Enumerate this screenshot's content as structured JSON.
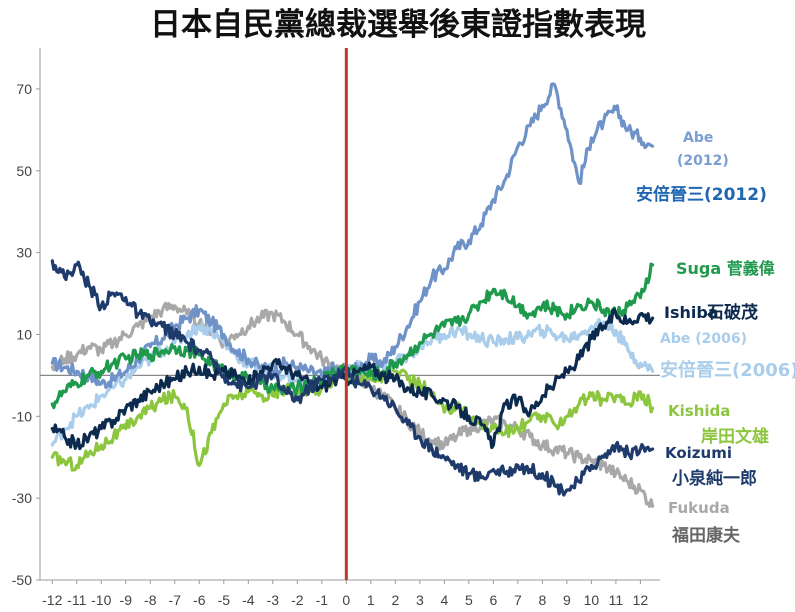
{
  "chart_data": {
    "type": "line",
    "title": "日本自民黨總裁選舉後東證指數表現",
    "xlabel": "",
    "ylabel": "",
    "xlim": [
      -12.5,
      12.8
    ],
    "ylim": [
      -50,
      80
    ],
    "x_ticks": [
      "-12",
      "-11",
      "-10",
      "-9",
      "-8",
      "-7",
      "-6",
      "-5",
      "-4",
      "-3",
      "-2",
      "-1",
      "0",
      "1",
      "2",
      "3",
      "4",
      "5",
      "6",
      "7",
      "8",
      "9",
      "10",
      "11",
      "12"
    ],
    "y_ticks": [
      "70",
      "50",
      "30",
      "10",
      "-10",
      "-30",
      "-50"
    ],
    "y_tick_values": [
      70,
      50,
      30,
      10,
      -10,
      -30,
      -50
    ],
    "baseline": 0,
    "event_line_x": 0,
    "event_line_color": "#c0392b",
    "grid": false,
    "legend": "labels at line ends (right)",
    "series": [
      {
        "name": "Abe (2012) / 安倍晉三(2012)",
        "color": "#6f93c9",
        "labels": [
          "Abe",
          "(2012)",
          "安倍晉三(2012)"
        ],
        "x": [
          -12,
          -11.5,
          -11,
          -10.5,
          -10,
          -9.5,
          -9,
          -8.5,
          -8,
          -7.5,
          -7,
          -6.5,
          -6,
          -5.5,
          -5,
          -4.5,
          -4,
          -3.5,
          -3,
          -2.5,
          -2,
          -1.5,
          -1,
          -0.5,
          0,
          0.5,
          1,
          1.5,
          2,
          2.5,
          3,
          3.5,
          4,
          4.5,
          5,
          5.5,
          6,
          6.5,
          7,
          7.5,
          8,
          8.5,
          9,
          9.5,
          10,
          10.5,
          11,
          11.5,
          12,
          12.5
        ],
        "values": [
          3,
          2,
          1,
          0,
          -2,
          -1,
          1,
          4,
          7,
          9,
          12,
          14,
          16,
          13,
          10,
          6,
          4,
          2,
          1,
          3,
          2,
          1,
          0,
          2,
          0,
          2,
          4,
          3,
          7,
          12,
          18,
          24,
          26,
          31,
          33,
          37,
          43,
          48,
          56,
          61,
          66,
          71,
          60,
          47,
          58,
          62,
          65,
          60,
          58,
          56
        ]
      },
      {
        "name": "Suga 菅義偉",
        "color": "#1f9a4d",
        "labels": [
          "Suga 菅義偉"
        ],
        "x": [
          -12,
          -11.5,
          -11,
          -10.5,
          -10,
          -9.5,
          -9,
          -8.5,
          -8,
          -7.5,
          -7,
          -6.5,
          -6,
          -5.5,
          -5,
          -4.5,
          -4,
          -3.5,
          -3,
          -2.5,
          -2,
          -1.5,
          -1,
          -0.5,
          0,
          0.5,
          1,
          1.5,
          2,
          2.5,
          3,
          3.5,
          4,
          4.5,
          5,
          5.5,
          6,
          6.5,
          7,
          7.5,
          8,
          8.5,
          9,
          9.5,
          10,
          10.5,
          11,
          11.5,
          12,
          12.5
        ],
        "values": [
          -7,
          -4,
          -2,
          0,
          1,
          3,
          4,
          5,
          5,
          6,
          7,
          6,
          5,
          3,
          1,
          0,
          -1,
          -2,
          -3,
          -4,
          -3,
          -2,
          -1,
          1,
          2,
          1,
          0,
          1,
          3,
          5,
          8,
          10,
          12,
          13,
          15,
          18,
          21,
          20,
          17,
          15,
          17,
          16,
          15,
          17,
          18,
          16,
          15,
          17,
          19,
          27
        ]
      },
      {
        "name": "Ishiba 石破茂",
        "color": "#0c2a4e",
        "labels": [
          "Ishiba",
          "石破茂"
        ],
        "x": [
          -12,
          -11.5,
          -11,
          -10.5,
          -10,
          -9.5,
          -9,
          -8.5,
          -8,
          -7.5,
          -7,
          -6.5,
          -6,
          -5.5,
          -5,
          -4.5,
          -4,
          -3.5,
          -3,
          -2.5,
          -2,
          -1.5,
          -1,
          -0.5,
          0,
          0.5,
          1,
          1.5,
          2,
          2.5,
          3,
          3.5,
          4,
          4.5,
          5,
          5.5,
          6,
          6.5,
          7,
          7.5,
          8,
          8.5,
          9,
          9.5,
          10,
          10.5,
          11,
          11.5,
          12,
          12.5
        ],
        "values": [
          -13,
          -15,
          -17,
          -15,
          -13,
          -11,
          -8,
          -6,
          -4,
          -2,
          -1,
          1,
          2,
          0,
          1,
          0,
          -2,
          1,
          3,
          2,
          0,
          -2,
          -3,
          -1,
          -1,
          1,
          2,
          0,
          -1,
          -3,
          -4,
          -5,
          -6,
          -8,
          -10,
          -12,
          -17,
          -7,
          -6,
          -9,
          -5,
          -2,
          1,
          4,
          9,
          12,
          15,
          13,
          15,
          14
        ]
      },
      {
        "name": "Abe (2006) / 安倍晉三(2006)",
        "color": "#a9cdea",
        "labels": [
          "Abe (2006)",
          "安倍晉三(2006)"
        ],
        "x": [
          -12,
          -11.5,
          -11,
          -10.5,
          -10,
          -9.5,
          -9,
          -8.5,
          -8,
          -7.5,
          -7,
          -6.5,
          -6,
          -5.5,
          -5,
          -4.5,
          -4,
          -3.5,
          -3,
          -2.5,
          -2,
          -1.5,
          -1,
          -0.5,
          0,
          0.5,
          1,
          1.5,
          2,
          2.5,
          3,
          3.5,
          4,
          4.5,
          5,
          5.5,
          6,
          6.5,
          7,
          7.5,
          8,
          8.5,
          9,
          9.5,
          10,
          10.5,
          11,
          11.5,
          12,
          12.5
        ],
        "values": [
          -17,
          -13,
          -10,
          -8,
          -5,
          -3,
          -1,
          2,
          4,
          6,
          8,
          10,
          12,
          11,
          8,
          5,
          3,
          2,
          1,
          0,
          -1,
          -2,
          -2,
          0,
          1,
          2,
          1,
          2,
          3,
          5,
          7,
          9,
          10,
          11,
          10,
          9,
          8,
          9,
          9,
          10,
          11,
          10,
          9,
          10,
          12,
          13,
          11,
          6,
          3,
          1
        ]
      },
      {
        "name": "Kishida 岸田文雄",
        "color": "#8cc63e",
        "labels": [
          "Kishida",
          "岸田文雄"
        ],
        "x": [
          -12,
          -11.5,
          -11,
          -10.5,
          -10,
          -9.5,
          -9,
          -8.5,
          -8,
          -7.5,
          -7,
          -6.5,
          -6,
          -5.5,
          -5,
          -4.5,
          -4,
          -3.5,
          -3,
          -2.5,
          -2,
          -1.5,
          -1,
          -0.5,
          0,
          0.5,
          1,
          1.5,
          2,
          2.5,
          3,
          3.5,
          4,
          4.5,
          5,
          5.5,
          6,
          6.5,
          7,
          7.5,
          8,
          8.5,
          9,
          9.5,
          10,
          10.5,
          11,
          11.5,
          12,
          12.5
        ],
        "values": [
          -20,
          -21,
          -22,
          -19,
          -17,
          -15,
          -13,
          -10,
          -8,
          -6,
          -5,
          -8,
          -22,
          -14,
          -7,
          -5,
          -4,
          -5,
          -5,
          -3,
          -4,
          -4,
          -3,
          -1,
          0,
          -1,
          -1,
          0,
          1,
          -1,
          -2,
          -5,
          -9,
          -7,
          -10,
          -12,
          -13,
          -14,
          -13,
          -11,
          -10,
          -12,
          -10,
          -7,
          -5,
          -6,
          -5,
          -7,
          -4,
          -8
        ]
      },
      {
        "name": "Koizumi 小泉純一郎",
        "color": "#1e3b6c",
        "labels": [
          "Koizumi",
          "小泉純一郎"
        ],
        "x": [
          -12,
          -11.5,
          -11,
          -10.5,
          -10,
          -9.5,
          -9,
          -8.5,
          -8,
          -7.5,
          -7,
          -6.5,
          -6,
          -5.5,
          -5,
          -4.5,
          -4,
          -3.5,
          -3,
          -2.5,
          -2,
          -1.5,
          -1,
          -0.5,
          0,
          0.5,
          1,
          1.5,
          2,
          2.5,
          3,
          3.5,
          4,
          4.5,
          5,
          5.5,
          6,
          6.5,
          7,
          7.5,
          8,
          8.5,
          9,
          9.5,
          10,
          10.5,
          11,
          11.5,
          12,
          12.5
        ],
        "values": [
          28,
          24,
          27,
          22,
          17,
          20,
          19,
          15,
          13,
          12,
          10,
          8,
          6,
          4,
          0,
          -2,
          -3,
          -1,
          0,
          -4,
          -6,
          -3,
          -1,
          0,
          1,
          -2,
          -3,
          -5,
          -8,
          -12,
          -15,
          -18,
          -20,
          -22,
          -24,
          -25,
          -23,
          -24,
          -22,
          -23,
          -24,
          -27,
          -28,
          -26,
          -22,
          -20,
          -17,
          -19,
          -18,
          -18
        ]
      },
      {
        "name": "Fukuda 福田康夫",
        "color": "#a8a8a8",
        "labels": [
          "Fukuda",
          "福田康夫"
        ],
        "x": [
          -12,
          -11.5,
          -11,
          -10.5,
          -10,
          -9.5,
          -9,
          -8.5,
          -8,
          -7.5,
          -7,
          -6.5,
          -6,
          -5.5,
          -5,
          -4.5,
          -4,
          -3.5,
          -3,
          -2.5,
          -2,
          -1.5,
          -1,
          -0.5,
          0,
          0.5,
          1,
          1.5,
          2,
          2.5,
          3,
          3.5,
          4,
          4.5,
          5,
          5.5,
          6,
          6.5,
          7,
          7.5,
          8,
          8.5,
          9,
          9.5,
          10,
          10.5,
          11,
          11.5,
          12,
          12.5
        ],
        "values": [
          2,
          4,
          5,
          7,
          6,
          8,
          10,
          12,
          14,
          16,
          17,
          15,
          13,
          11,
          8,
          10,
          12,
          14,
          15,
          13,
          10,
          7,
          4,
          2,
          1,
          -1,
          -3,
          -5,
          -8,
          -11,
          -14,
          -16,
          -17,
          -15,
          -13,
          -12,
          -11,
          -12,
          -13,
          -15,
          -17,
          -18,
          -19,
          -20,
          -21,
          -22,
          -24,
          -26,
          -28,
          -32
        ]
      }
    ]
  }
}
